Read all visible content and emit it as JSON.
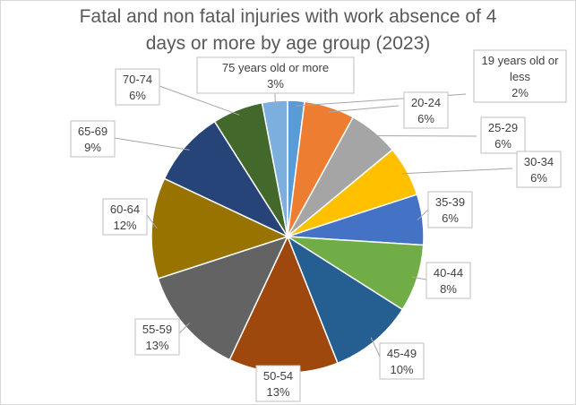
{
  "chart_data": {
    "type": "pie",
    "title_lines": [
      "Fatal and non fatal injuries with work absence of 4",
      "days or more by age group (2023)"
    ],
    "categories": [
      "19 years old or less",
      "20-24",
      "25-29",
      "30-34",
      "35-39",
      "40-44",
      "45-49",
      "50-54",
      "55-59",
      "60-64",
      "65-69",
      "70-74",
      "75 years old or more"
    ],
    "values": [
      2,
      6,
      6,
      6,
      6,
      8,
      10,
      13,
      13,
      12,
      9,
      6,
      3
    ],
    "labels": [
      [
        "19 years old or",
        "less",
        "2%"
      ],
      [
        "20-24",
        "6%"
      ],
      [
        "25-29",
        "6%"
      ],
      [
        "30-34",
        "6%"
      ],
      [
        "35-39",
        "6%"
      ],
      [
        "40-44",
        "8%"
      ],
      [
        "45-49",
        "10%"
      ],
      [
        "50-54",
        "13%"
      ],
      [
        "55-59",
        "13%"
      ],
      [
        "60-64",
        "12%"
      ],
      [
        "65-69",
        "9%"
      ],
      [
        "70-74",
        "6%"
      ],
      [
        "75 years old or more",
        "3%"
      ]
    ],
    "colors": [
      "#5b9bd5",
      "#ed7d31",
      "#a5a5a5",
      "#ffc000",
      "#4472c4",
      "#70ad47",
      "#255e91",
      "#9e480e",
      "#636363",
      "#997300",
      "#264478",
      "#43682b",
      "#7cafdd"
    ],
    "legend": "none"
  }
}
